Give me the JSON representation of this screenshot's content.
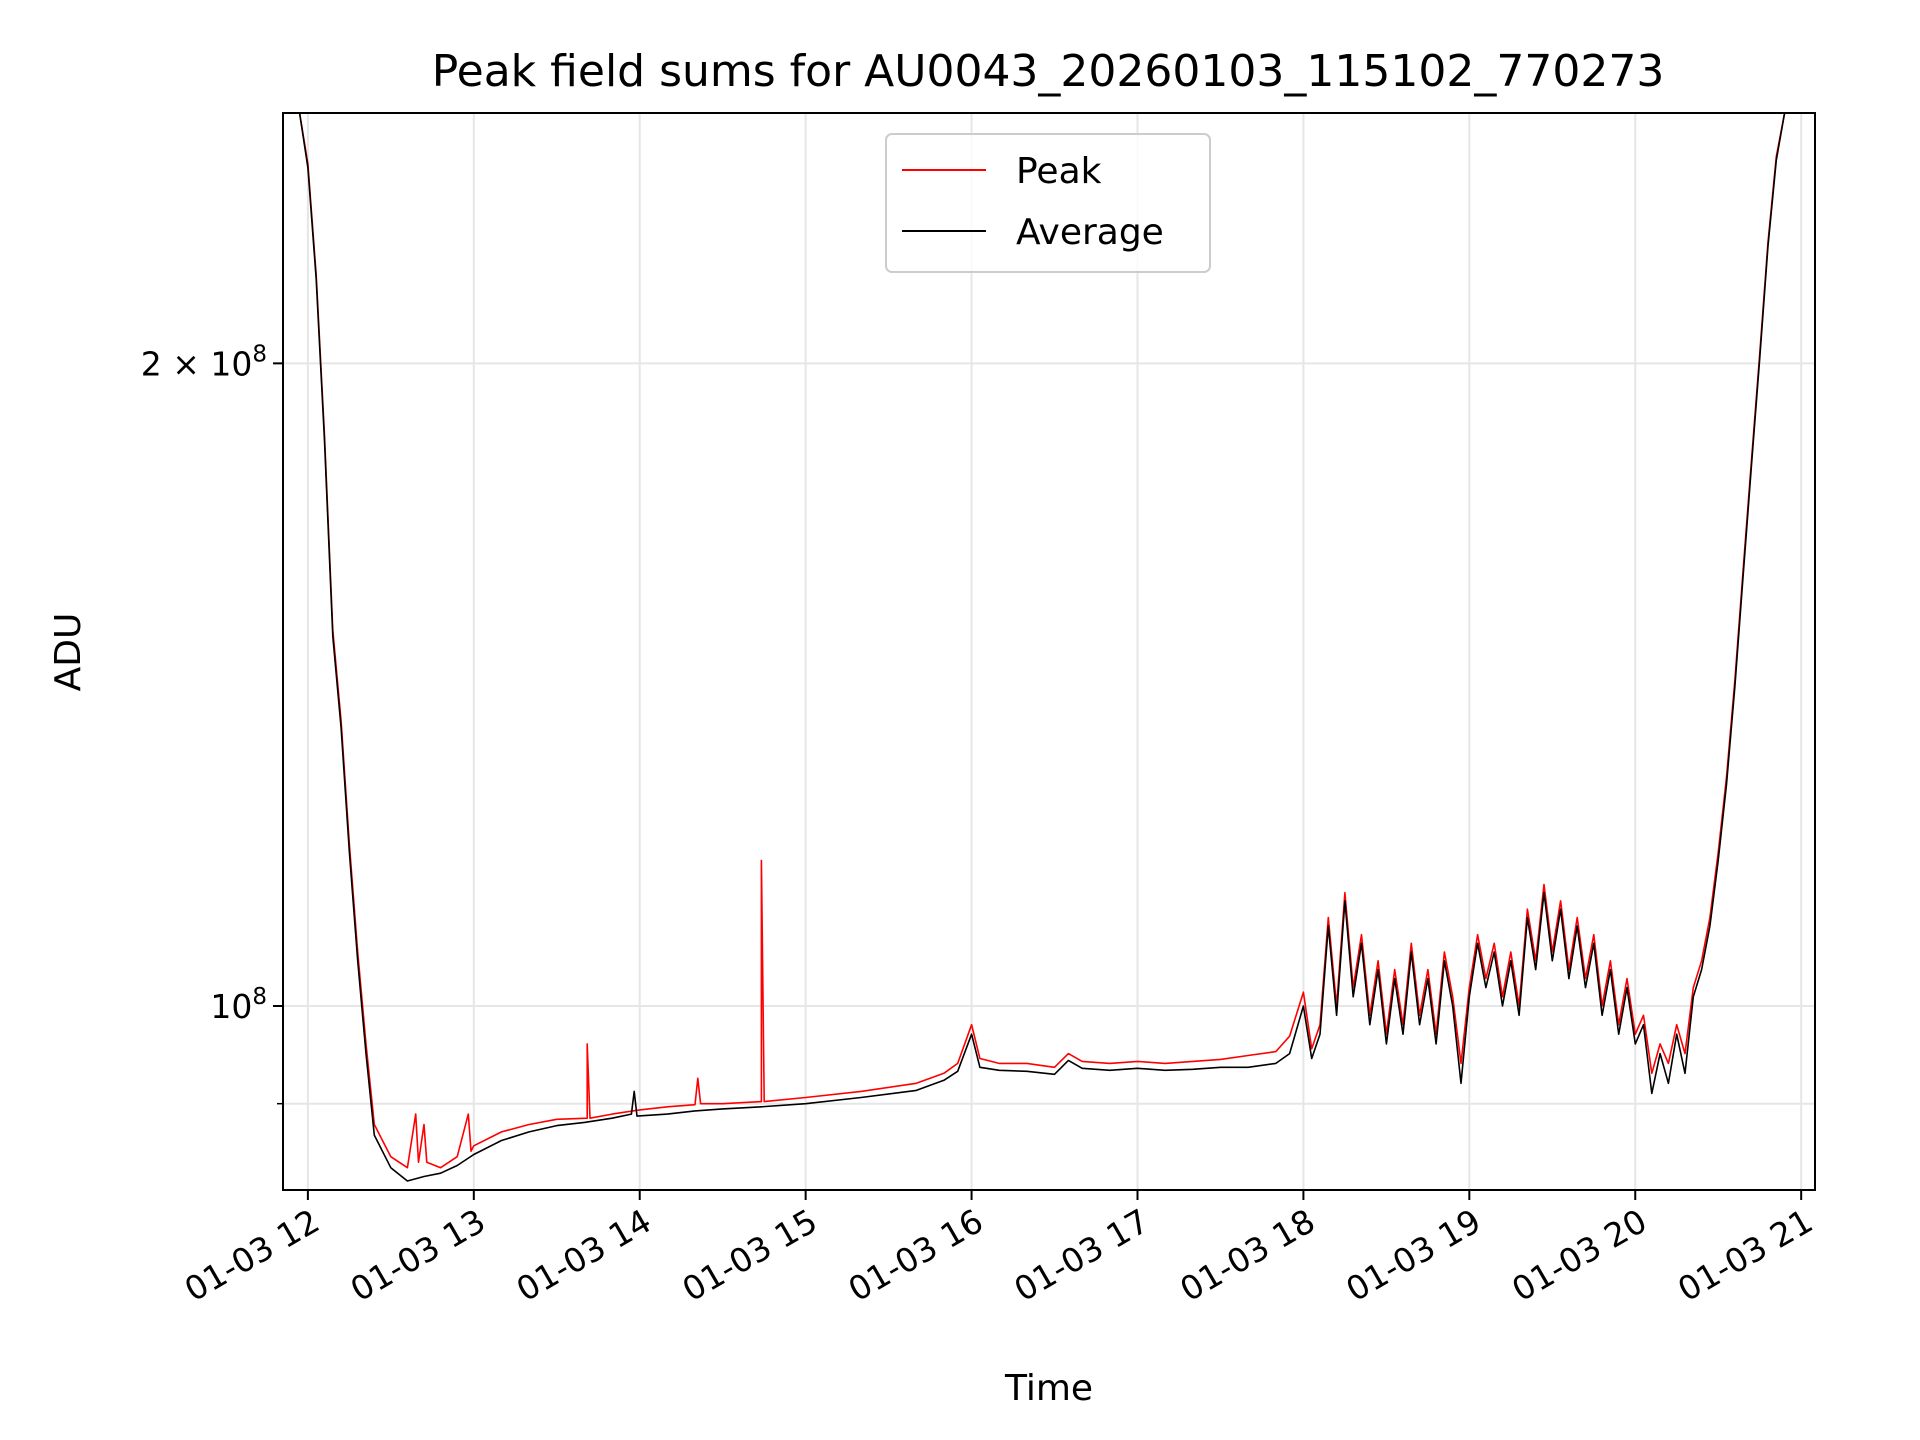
{
  "chart_data": {
    "type": "line",
    "title": "Peak field sums for AU0043_20260103_115102_770273",
    "xlabel": "Time",
    "ylabel": "ADU",
    "xlim": [
      "2026-01-03 11:51",
      "2026-01-03 21:05"
    ],
    "ylim": [
      82000000,
      262000000
    ],
    "yscale": "log",
    "grid": true,
    "legend_position": "top-center",
    "x_ticks": [
      "01-03 12",
      "01-03 13",
      "01-03 14",
      "01-03 15",
      "01-03 16",
      "01-03 17",
      "01-03 18",
      "01-03 19",
      "01-03 20",
      "01-03 21"
    ],
    "y_ticks": [
      {
        "value": 100000000,
        "base": "10",
        "exp": "8",
        "prefix": ""
      },
      {
        "value": 200000000,
        "base": "10",
        "exp": "8",
        "prefix": "2 × "
      }
    ],
    "series": [
      {
        "name": "Peak",
        "color": "#ff0000",
        "points": [
          [
            "2026-01-03 11:57",
            262000000
          ],
          [
            "2026-01-03 12:00",
            248000000
          ],
          [
            "2026-01-03 12:03",
            220000000
          ],
          [
            "2026-01-03 12:06",
            185000000
          ],
          [
            "2026-01-03 12:09",
            150000000
          ],
          [
            "2026-01-03 12:12",
            136000000
          ],
          [
            "2026-01-03 12:15",
            119000000
          ],
          [
            "2026-01-03 12:18",
            106000000
          ],
          [
            "2026-01-03 12:21",
            96000000
          ],
          [
            "2026-01-03 12:24",
            88000000
          ],
          [
            "2026-01-03 12:30",
            85000000
          ],
          [
            "2026-01-03 12:36",
            84000000
          ],
          [
            "2026-01-03 12:39",
            89000000
          ],
          [
            "2026-01-03 12:40",
            84500000
          ],
          [
            "2026-01-03 12:42",
            88000000
          ],
          [
            "2026-01-03 12:43",
            84500000
          ],
          [
            "2026-01-03 12:48",
            84000000
          ],
          [
            "2026-01-03 12:54",
            85000000
          ],
          [
            "2026-01-03 12:58",
            89000000
          ],
          [
            "2026-01-03 12:59",
            85500000
          ],
          [
            "2026-01-03 13:00",
            86000000
          ],
          [
            "2026-01-03 13:10",
            87300000
          ],
          [
            "2026-01-03 13:20",
            88000000
          ],
          [
            "2026-01-03 13:30",
            88500000
          ],
          [
            "2026-01-03 13:41",
            88600000
          ],
          [
            "2026-01-03 13:41",
            96000000
          ],
          [
            "2026-01-03 13:42",
            88600000
          ],
          [
            "2026-01-03 13:50",
            89000000
          ],
          [
            "2026-01-03 14:00",
            89400000
          ],
          [
            "2026-01-03 14:10",
            89700000
          ],
          [
            "2026-01-03 14:20",
            89900000
          ],
          [
            "2026-01-03 14:21",
            92500000
          ],
          [
            "2026-01-03 14:22",
            90000000
          ],
          [
            "2026-01-03 14:30",
            90000000
          ],
          [
            "2026-01-03 14:44",
            90200000
          ],
          [
            "2026-01-03 14:44",
            117000000
          ],
          [
            "2026-01-03 14:45",
            90200000
          ],
          [
            "2026-01-03 15:00",
            90600000
          ],
          [
            "2026-01-03 15:20",
            91200000
          ],
          [
            "2026-01-03 15:40",
            92000000
          ],
          [
            "2026-01-03 15:50",
            93000000
          ],
          [
            "2026-01-03 15:55",
            94000000
          ],
          [
            "2026-01-03 16:00",
            98000000
          ],
          [
            "2026-01-03 16:03",
            94500000
          ],
          [
            "2026-01-03 16:10",
            94000000
          ],
          [
            "2026-01-03 16:20",
            94000000
          ],
          [
            "2026-01-03 16:30",
            93600000
          ],
          [
            "2026-01-03 16:35",
            95000000
          ],
          [
            "2026-01-03 16:40",
            94200000
          ],
          [
            "2026-01-03 16:50",
            94000000
          ],
          [
            "2026-01-03 17:00",
            94200000
          ],
          [
            "2026-01-03 17:10",
            94000000
          ],
          [
            "2026-01-03 17:20",
            94200000
          ],
          [
            "2026-01-03 17:30",
            94400000
          ],
          [
            "2026-01-03 17:40",
            94800000
          ],
          [
            "2026-01-03 17:50",
            95200000
          ],
          [
            "2026-01-03 17:55",
            96800000
          ],
          [
            "2026-01-03 18:00",
            101500000
          ],
          [
            "2026-01-03 18:03",
            95500000
          ],
          [
            "2026-01-03 18:06",
            98000000
          ],
          [
            "2026-01-03 18:09",
            110000000
          ],
          [
            "2026-01-03 18:12",
            100000000
          ],
          [
            "2026-01-03 18:15",
            113000000
          ],
          [
            "2026-01-03 18:18",
            102000000
          ],
          [
            "2026-01-03 18:21",
            108000000
          ],
          [
            "2026-01-03 18:24",
            99000000
          ],
          [
            "2026-01-03 18:27",
            105000000
          ],
          [
            "2026-01-03 18:30",
            97000000
          ],
          [
            "2026-01-03 18:33",
            104000000
          ],
          [
            "2026-01-03 18:36",
            98000000
          ],
          [
            "2026-01-03 18:39",
            107000000
          ],
          [
            "2026-01-03 18:42",
            99000000
          ],
          [
            "2026-01-03 18:45",
            104000000
          ],
          [
            "2026-01-03 18:48",
            97000000
          ],
          [
            "2026-01-03 18:51",
            106000000
          ],
          [
            "2026-01-03 18:54",
            101000000
          ],
          [
            "2026-01-03 18:57",
            94000000
          ],
          [
            "2026-01-03 19:00",
            102000000
          ],
          [
            "2026-01-03 19:03",
            108000000
          ],
          [
            "2026-01-03 19:06",
            103000000
          ],
          [
            "2026-01-03 19:09",
            107000000
          ],
          [
            "2026-01-03 19:12",
            101000000
          ],
          [
            "2026-01-03 19:15",
            106000000
          ],
          [
            "2026-01-03 19:18",
            100000000
          ],
          [
            "2026-01-03 19:21",
            111000000
          ],
          [
            "2026-01-03 19:24",
            105000000
          ],
          [
            "2026-01-03 19:27",
            114000000
          ],
          [
            "2026-01-03 19:30",
            106000000
          ],
          [
            "2026-01-03 19:33",
            112000000
          ],
          [
            "2026-01-03 19:36",
            104000000
          ],
          [
            "2026-01-03 19:39",
            110000000
          ],
          [
            "2026-01-03 19:42",
            103000000
          ],
          [
            "2026-01-03 19:45",
            108000000
          ],
          [
            "2026-01-03 19:48",
            100000000
          ],
          [
            "2026-01-03 19:51",
            105000000
          ],
          [
            "2026-01-03 19:54",
            98000000
          ],
          [
            "2026-01-03 19:57",
            103000000
          ],
          [
            "2026-01-03 20:00",
            97000000
          ],
          [
            "2026-01-03 20:03",
            99000000
          ],
          [
            "2026-01-03 20:06",
            93000000
          ],
          [
            "2026-01-03 20:09",
            96000000
          ],
          [
            "2026-01-03 20:12",
            94000000
          ],
          [
            "2026-01-03 20:15",
            98000000
          ],
          [
            "2026-01-03 20:18",
            95000000
          ],
          [
            "2026-01-03 20:21",
            102000000
          ],
          [
            "2026-01-03 20:24",
            105000000
          ],
          [
            "2026-01-03 20:27",
            110000000
          ],
          [
            "2026-01-03 20:30",
            118000000
          ],
          [
            "2026-01-03 20:33",
            128000000
          ],
          [
            "2026-01-03 20:36",
            142000000
          ],
          [
            "2026-01-03 20:39",
            160000000
          ],
          [
            "2026-01-03 20:42",
            180000000
          ],
          [
            "2026-01-03 20:45",
            202000000
          ],
          [
            "2026-01-03 20:48",
            228000000
          ],
          [
            "2026-01-03 20:51",
            250000000
          ],
          [
            "2026-01-03 20:54",
            262000000
          ]
        ]
      },
      {
        "name": "Average",
        "color": "#000000",
        "points": [
          [
            "2026-01-03 11:57",
            262000000
          ],
          [
            "2026-01-03 12:00",
            247000000
          ],
          [
            "2026-01-03 12:03",
            219000000
          ],
          [
            "2026-01-03 12:06",
            184000000
          ],
          [
            "2026-01-03 12:09",
            149000000
          ],
          [
            "2026-01-03 12:12",
            135000000
          ],
          [
            "2026-01-03 12:15",
            118000000
          ],
          [
            "2026-01-03 12:18",
            105000000
          ],
          [
            "2026-01-03 12:21",
            95000000
          ],
          [
            "2026-01-03 12:24",
            87000000
          ],
          [
            "2026-01-03 12:30",
            84000000
          ],
          [
            "2026-01-03 12:36",
            82800000
          ],
          [
            "2026-01-03 12:42",
            83200000
          ],
          [
            "2026-01-03 12:48",
            83500000
          ],
          [
            "2026-01-03 12:54",
            84200000
          ],
          [
            "2026-01-03 13:00",
            85200000
          ],
          [
            "2026-01-03 13:10",
            86500000
          ],
          [
            "2026-01-03 13:20",
            87300000
          ],
          [
            "2026-01-03 13:30",
            87900000
          ],
          [
            "2026-01-03 13:40",
            88200000
          ],
          [
            "2026-01-03 13:50",
            88600000
          ],
          [
            "2026-01-03 13:57",
            89000000
          ],
          [
            "2026-01-03 13:58",
            91200000
          ],
          [
            "2026-01-03 13:59",
            88800000
          ],
          [
            "2026-01-03 14:10",
            89000000
          ],
          [
            "2026-01-03 14:20",
            89300000
          ],
          [
            "2026-01-03 14:30",
            89500000
          ],
          [
            "2026-01-03 14:44",
            89700000
          ],
          [
            "2026-01-03 15:00",
            90000000
          ],
          [
            "2026-01-03 15:20",
            90600000
          ],
          [
            "2026-01-03 15:40",
            91300000
          ],
          [
            "2026-01-03 15:50",
            92300000
          ],
          [
            "2026-01-03 15:55",
            93200000
          ],
          [
            "2026-01-03 16:00",
            97000000
          ],
          [
            "2026-01-03 16:03",
            93600000
          ],
          [
            "2026-01-03 16:10",
            93300000
          ],
          [
            "2026-01-03 16:20",
            93200000
          ],
          [
            "2026-01-03 16:30",
            92900000
          ],
          [
            "2026-01-03 16:35",
            94300000
          ],
          [
            "2026-01-03 16:40",
            93500000
          ],
          [
            "2026-01-03 16:50",
            93300000
          ],
          [
            "2026-01-03 17:00",
            93500000
          ],
          [
            "2026-01-03 17:10",
            93300000
          ],
          [
            "2026-01-03 17:20",
            93400000
          ],
          [
            "2026-01-03 17:30",
            93600000
          ],
          [
            "2026-01-03 17:40",
            93600000
          ],
          [
            "2026-01-03 17:50",
            94000000
          ],
          [
            "2026-01-03 17:55",
            95000000
          ],
          [
            "2026-01-03 18:00",
            100000000
          ],
          [
            "2026-01-03 18:03",
            94500000
          ],
          [
            "2026-01-03 18:06",
            97000000
          ],
          [
            "2026-01-03 18:09",
            109000000
          ],
          [
            "2026-01-03 18:12",
            99000000
          ],
          [
            "2026-01-03 18:15",
            112000000
          ],
          [
            "2026-01-03 18:18",
            101000000
          ],
          [
            "2026-01-03 18:21",
            107000000
          ],
          [
            "2026-01-03 18:24",
            98000000
          ],
          [
            "2026-01-03 18:27",
            104000000
          ],
          [
            "2026-01-03 18:30",
            96000000
          ],
          [
            "2026-01-03 18:33",
            103000000
          ],
          [
            "2026-01-03 18:36",
            97000000
          ],
          [
            "2026-01-03 18:39",
            106000000
          ],
          [
            "2026-01-03 18:42",
            98000000
          ],
          [
            "2026-01-03 18:45",
            103000000
          ],
          [
            "2026-01-03 18:48",
            96000000
          ],
          [
            "2026-01-03 18:51",
            105000000
          ],
          [
            "2026-01-03 18:54",
            100000000
          ],
          [
            "2026-01-03 18:57",
            92000000
          ],
          [
            "2026-01-03 19:00",
            101000000
          ],
          [
            "2026-01-03 19:03",
            107000000
          ],
          [
            "2026-01-03 19:06",
            102000000
          ],
          [
            "2026-01-03 19:09",
            106000000
          ],
          [
            "2026-01-03 19:12",
            100000000
          ],
          [
            "2026-01-03 19:15",
            105000000
          ],
          [
            "2026-01-03 19:18",
            99000000
          ],
          [
            "2026-01-03 19:21",
            110000000
          ],
          [
            "2026-01-03 19:24",
            104000000
          ],
          [
            "2026-01-03 19:27",
            113000000
          ],
          [
            "2026-01-03 19:30",
            105000000
          ],
          [
            "2026-01-03 19:33",
            111000000
          ],
          [
            "2026-01-03 19:36",
            103000000
          ],
          [
            "2026-01-03 19:39",
            109000000
          ],
          [
            "2026-01-03 19:42",
            102000000
          ],
          [
            "2026-01-03 19:45",
            107000000
          ],
          [
            "2026-01-03 19:48",
            99000000
          ],
          [
            "2026-01-03 19:51",
            104000000
          ],
          [
            "2026-01-03 19:54",
            97000000
          ],
          [
            "2026-01-03 19:57",
            102000000
          ],
          [
            "2026-01-03 20:00",
            96000000
          ],
          [
            "2026-01-03 20:03",
            98000000
          ],
          [
            "2026-01-03 20:06",
            91000000
          ],
          [
            "2026-01-03 20:09",
            95000000
          ],
          [
            "2026-01-03 20:12",
            92000000
          ],
          [
            "2026-01-03 20:15",
            97000000
          ],
          [
            "2026-01-03 20:18",
            93000000
          ],
          [
            "2026-01-03 20:21",
            101000000
          ],
          [
            "2026-01-03 20:24",
            104000000
          ],
          [
            "2026-01-03 20:27",
            109000000
          ],
          [
            "2026-01-03 20:30",
            117000000
          ],
          [
            "2026-01-03 20:33",
            127000000
          ],
          [
            "2026-01-03 20:36",
            141000000
          ],
          [
            "2026-01-03 20:39",
            159000000
          ],
          [
            "2026-01-03 20:42",
            179000000
          ],
          [
            "2026-01-03 20:45",
            201000000
          ],
          [
            "2026-01-03 20:48",
            227000000
          ],
          [
            "2026-01-03 20:51",
            249000000
          ],
          [
            "2026-01-03 20:54",
            262000000
          ]
        ]
      }
    ]
  }
}
